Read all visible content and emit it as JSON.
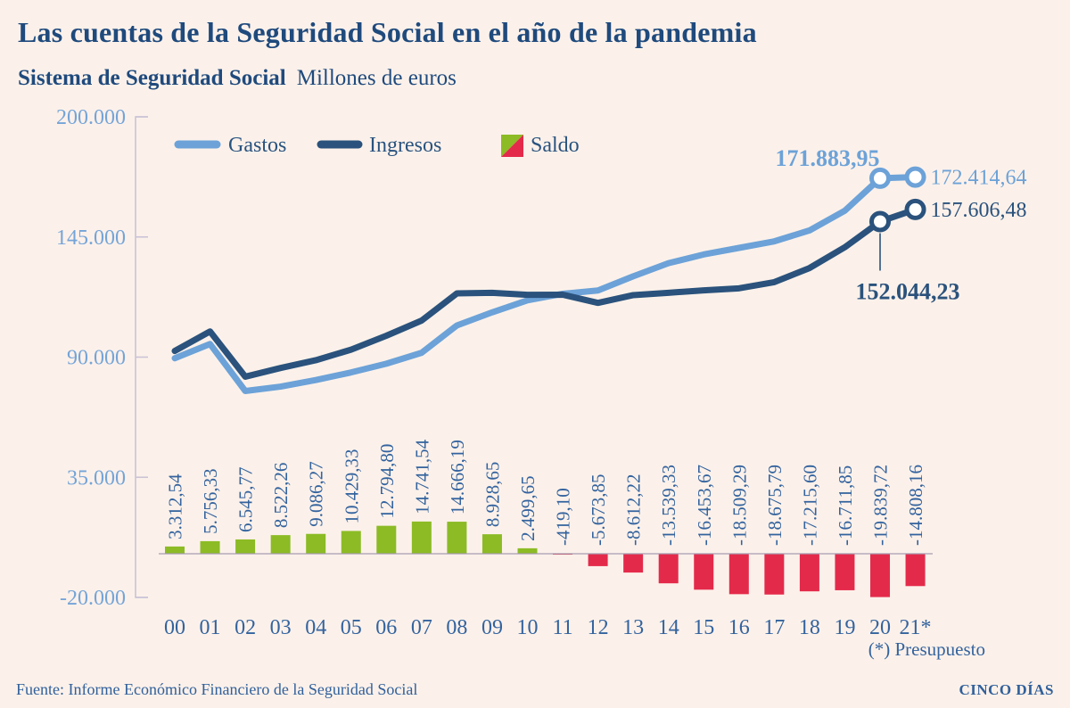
{
  "chart_data": {
    "type": "combo",
    "title": "Las cuentas de la Seguridad Social en el año de la pandemia",
    "subtitle": "Sistema de Seguridad Social",
    "units_label": "Millones de euros",
    "footnote": "(*) Presupuesto",
    "source": "Fuente: Informe Económico Financiero de la Seguridad Social",
    "brand": "CINCO DÍAS",
    "categories": [
      "00",
      "01",
      "02",
      "03",
      "04",
      "05",
      "06",
      "07",
      "08",
      "09",
      "10",
      "11",
      "12",
      "13",
      "14",
      "15",
      "16",
      "17",
      "18",
      "19",
      "20",
      "21*"
    ],
    "y_axis": {
      "min": -20000,
      "max": 200000,
      "ticks": [
        {
          "label": "200.000",
          "value": 200000
        },
        {
          "label": "145.000",
          "value": 145000
        },
        {
          "label": "90.000",
          "value": 90000
        },
        {
          "label": "35.000",
          "value": 35000
        },
        {
          "label": "-20.000",
          "value": -20000
        }
      ]
    },
    "series": [
      {
        "name": "Gastos",
        "type": "line",
        "color": "#6ca2d8",
        "values": [
          89500,
          96000,
          74500,
          76500,
          79500,
          83000,
          87000,
          92000,
          104500,
          110500,
          116000,
          119000,
          120500,
          127000,
          133000,
          137000,
          140000,
          143000,
          148000,
          157000,
          171883.95,
          172414.64
        ]
      },
      {
        "name": "Ingresos",
        "type": "line",
        "color": "#2a527c",
        "values": [
          92812.54,
          101756.33,
          81045.77,
          85022.26,
          88586.27,
          93429.33,
          99794.8,
          106741.54,
          119166.19,
          119428.65,
          118499.65,
          118580.9,
          114826.15,
          118387.78,
          119460.67,
          120546.33,
          121490.71,
          124324.21,
          130784.4,
          140288.15,
          152044.23,
          157606.48
        ]
      },
      {
        "name": "Saldo",
        "type": "bar",
        "color_positive": "#8cbb25",
        "color_negative": "#e42a4b",
        "values": [
          3312.54,
          5756.33,
          6545.77,
          8522.26,
          9086.27,
          10429.33,
          12794.8,
          14741.54,
          14666.19,
          8928.65,
          2499.65,
          -419.1,
          -5673.85,
          -8612.22,
          -13539.33,
          -16453.67,
          -18509.29,
          -18675.79,
          -17215.6,
          -16711.85,
          -19839.72,
          -14808.16
        ],
        "labels": [
          "3.312,54",
          "5.756,33",
          "6.545,77",
          "8.522,26",
          "9.086,27",
          "10.429,33",
          "12.794,80",
          "14.741,54",
          "14.666,19",
          "8.928,65",
          "2.499,65",
          "-419,10",
          "-5.673,85",
          "-8.612,22",
          "-13.539,33",
          "-16.453,67",
          "-18.509,29",
          "-18.675,79",
          "-17.215,60",
          "-16.711,85",
          "-19.839,72",
          "-14.808,16"
        ]
      }
    ],
    "annotations": [
      {
        "text": "171.883,95",
        "series": "Gastos",
        "year_index": 20,
        "placement": "above",
        "bold": true
      },
      {
        "text": "172.414,64",
        "series": "Gastos",
        "year_index": 21,
        "placement": "right",
        "bold": false
      },
      {
        "text": "157.606,48",
        "series": "Ingresos",
        "year_index": 21,
        "placement": "right",
        "bold": false
      },
      {
        "text": "152.044,23",
        "series": "Ingresos",
        "year_index": 20,
        "placement": "below-connector",
        "bold": true
      }
    ],
    "colors": {
      "background": "#fcf1ea",
      "title_text": "#1f4a7d",
      "axis_line": "#c9c3d6",
      "zero_line": "#a59db0",
      "y_tick_text": "#74a4d8",
      "value_text": "#33639e",
      "legend_text": "#29537f",
      "marker_fill": "#ffffff"
    }
  }
}
